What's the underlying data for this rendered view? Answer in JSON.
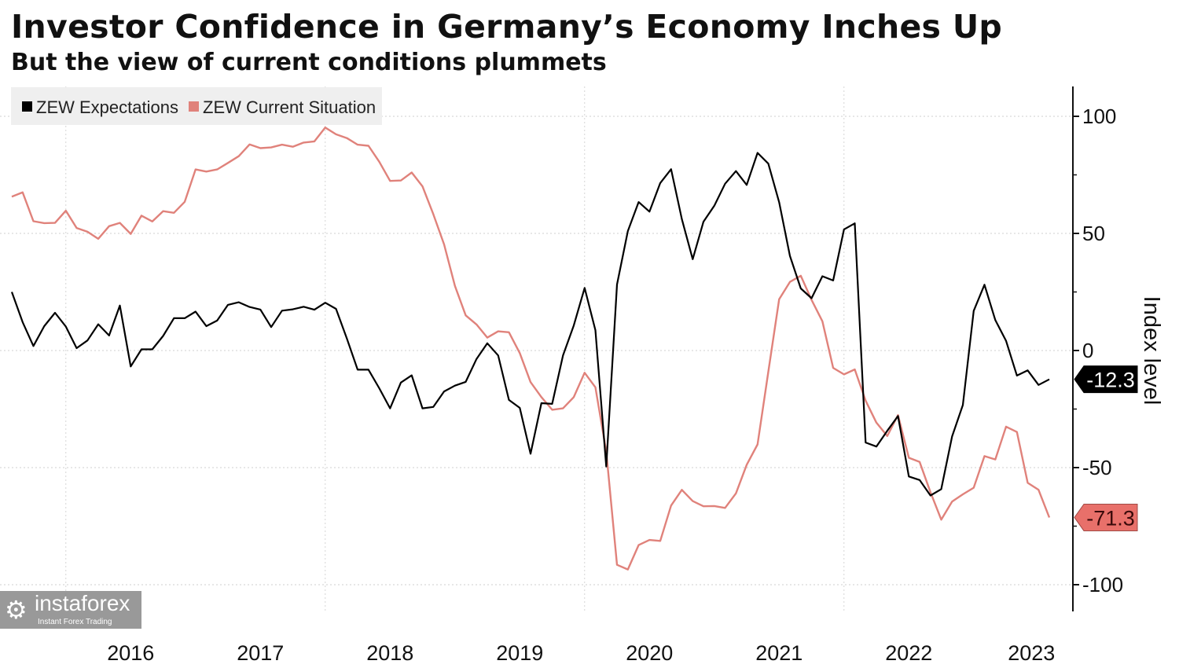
{
  "title": "Investor Confidence in Germany’s Economy Inches Up",
  "subtitle": "But the view of current conditions plummets",
  "logo": {
    "name": "instaforex",
    "tagline": "Instant Forex Trading"
  },
  "chart_data": {
    "type": "line",
    "title": "Investor Confidence in Germany’s Economy Inches Up",
    "subtitle": "But the view of current conditions plummets",
    "ylabel": "Index level",
    "ylim": [
      -110,
      112
    ],
    "yticks": [
      100,
      50,
      0,
      -50,
      -100
    ],
    "ytick_labels": [
      "100",
      "50",
      "0",
      "-50",
      "-100"
    ],
    "xstart": "2015-08",
    "xend": "2023-08",
    "xtick_labels": [
      "2016",
      "2017",
      "2018",
      "2019",
      "2020",
      "2021",
      "2022",
      "2023"
    ],
    "grid": true,
    "legend_placement": "top-left",
    "axis_side": "right",
    "series": [
      {
        "name": "ZEW Expectations",
        "color": "#000000",
        "last_label": "-12.3",
        "values": [
          25.0,
          12.1,
          1.9,
          10.4,
          16.1,
          10.2,
          1.0,
          4.3,
          11.2,
          6.4,
          19.2,
          -6.8,
          0.5,
          0.5,
          6.2,
          13.8,
          13.8,
          16.6,
          10.4,
          12.8,
          19.5,
          20.6,
          18.6,
          17.5,
          10.0,
          17.0,
          17.6,
          18.7,
          17.4,
          20.4,
          17.8,
          5.1,
          -8.2,
          -8.2,
          -16.1,
          -24.7,
          -13.7,
          -10.6,
          -24.7,
          -24.1,
          -17.5,
          -15.0,
          -13.4,
          -3.6,
          3.1,
          -2.1,
          -21.1,
          -24.5,
          -44.1,
          -22.5,
          -22.8,
          -2.1,
          10.7,
          26.7,
          8.7,
          -49.5,
          28.2,
          51.0,
          63.4,
          59.3,
          71.5,
          77.4,
          56.1,
          39.0,
          55.0,
          61.8,
          71.2,
          76.6,
          70.7,
          84.4,
          79.8,
          63.3,
          40.4,
          26.5,
          22.3,
          31.7,
          29.9,
          51.7,
          54.3,
          -39.3,
          -41.0,
          -34.3,
          -28.0,
          -53.8,
          -55.3,
          -61.9,
          -59.2,
          -36.7,
          -23.3,
          16.9,
          28.1,
          13.0,
          4.1,
          -10.7,
          -8.5,
          -14.7,
          -12.3
        ]
      },
      {
        "name": "ZEW Current Situation",
        "color": "#e0827b",
        "last_label": "-71.3",
        "values": [
          65.7,
          67.5,
          55.2,
          54.4,
          54.5,
          59.7,
          52.3,
          50.7,
          47.7,
          53.1,
          54.5,
          49.8,
          57.6,
          55.1,
          59.5,
          58.8,
          63.5,
          77.3,
          76.4,
          77.3,
          80.1,
          83.0,
          88.0,
          86.4,
          86.7,
          87.9,
          87.0,
          88.8,
          89.3,
          95.2,
          92.3,
          90.7,
          87.9,
          87.4,
          80.6,
          72.4,
          72.6,
          76.0,
          70.1,
          58.2,
          45.3,
          27.6,
          15.0,
          11.1,
          5.5,
          8.2,
          7.8,
          -1.1,
          -13.5,
          -19.9,
          -25.3,
          -24.7,
          -19.9,
          -9.5,
          -15.7,
          -43.1,
          -91.5,
          -93.5,
          -83.1,
          -80.9,
          -81.3,
          -66.2,
          -59.5,
          -64.3,
          -66.5,
          -66.4,
          -67.2,
          -61.0,
          -48.8,
          -40.1,
          -9.1,
          21.9,
          29.3,
          31.9,
          21.6,
          12.5,
          -7.4,
          -10.2,
          -8.1,
          -21.4,
          -30.8,
          -36.5,
          -27.6,
          -45.8,
          -47.6,
          -60.5,
          -72.2,
          -64.5,
          -61.4,
          -58.6,
          -45.1,
          -46.5,
          -32.5,
          -34.8,
          -56.5,
          -59.5,
          -71.3
        ]
      }
    ]
  }
}
